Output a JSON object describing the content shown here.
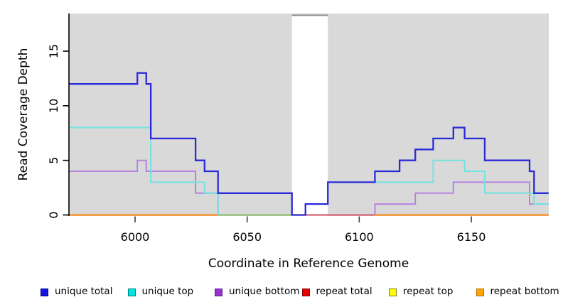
{
  "chart_data": {
    "type": "line",
    "subtype": "step-coverage",
    "title": "",
    "xlabel": "Coordinate in Reference Genome",
    "ylabel": "Read Coverage Depth",
    "x_ticks": [
      6000,
      6050,
      6100,
      6150
    ],
    "y_ticks": [
      0,
      5,
      10,
      15
    ],
    "x_range": [
      5970,
      6184.5
    ],
    "y_range": [
      0,
      18.4
    ],
    "grid": false,
    "legend_position": "bottom",
    "panel_bg": "#D9D9D9",
    "gap_region": {
      "x_start": 6070,
      "x_end": 6086,
      "fill": "#FFFFFF",
      "top_border": "#8C8C8C"
    },
    "series": [
      {
        "key": "repeat-total",
        "name": "repeat total",
        "color": "#DD2222",
        "width": 2,
        "paths": [
          {
            "x": [
              5970
            ],
            "y": [
              0
            ],
            "xend": 6184.5
          }
        ]
      },
      {
        "key": "repeat-top",
        "name": "repeat top",
        "color": "#F5F523",
        "width": 2,
        "paths": [
          {
            "x": [
              5970
            ],
            "y": [
              0
            ],
            "xend": 6184.5
          }
        ]
      },
      {
        "key": "repeat-bottom",
        "name": "repeat bottom",
        "color": "#FF8C1A",
        "width": 2.2,
        "paths": [
          {
            "x": [
              5970
            ],
            "y": [
              0
            ],
            "xend": 6184.5
          }
        ]
      },
      {
        "key": "unique-bottom",
        "name": "unique bottom",
        "color": "#B583DE",
        "width": 2,
        "paths": [
          {
            "x": [
              5970,
              6001,
              6005,
              6027,
              6037
            ],
            "y": [
              4,
              5,
              4,
              2,
              0
            ],
            "xend": null
          },
          {
            "x": [
              6107,
              6107,
              6125,
              6142,
              6176
            ],
            "y": [
              0,
              1,
              2,
              3,
              1
            ],
            "xend": 6184.5
          }
        ]
      },
      {
        "key": "unique-top",
        "name": "unique top",
        "color": "#74E2E0",
        "width": 2,
        "paths": [
          {
            "x": [
              5970,
              6007,
              6031,
              6037
            ],
            "y": [
              8,
              3,
              2,
              0
            ],
            "xend": null
          },
          {
            "x": [
              6107,
              6133,
              6147,
              6156,
              6178
            ],
            "y": [
              3,
              5,
              4,
              2,
              1
            ],
            "xend": 6184.5
          }
        ]
      },
      {
        "key": "unique-total",
        "name": "unique total",
        "color": "#2A2AD8",
        "width": 2.3,
        "paths": [
          {
            "x": [
              5970,
              6001,
              6005,
              6007,
              6027,
              6031,
              6037,
              6070,
              6076,
              6086,
              6107,
              6118,
              6125,
              6133,
              6142,
              6147,
              6156,
              6176,
              6178
            ],
            "y": [
              12,
              13,
              12,
              7,
              5,
              4,
              2,
              0,
              1,
              3,
              4,
              5,
              6,
              7,
              8,
              7,
              5,
              4,
              2
            ],
            "xend": 6184.5
          }
        ]
      }
    ],
    "zero_line_overlaps": [
      {
        "x1": 6037,
        "x2": 6070,
        "color": "#7EC882"
      },
      {
        "x1": 6076,
        "x2": 6106.5,
        "color": "#CC6080"
      }
    ]
  },
  "legend": {
    "items": [
      {
        "key": "unique-total",
        "label": "unique total",
        "fill": "#1414E6",
        "border": "#000080"
      },
      {
        "key": "unique-top",
        "label": "unique top",
        "fill": "#00E6E6",
        "border": "#007A7A"
      },
      {
        "key": "unique-bottom",
        "label": "unique bottom",
        "fill": "#9933CC",
        "border": "#5C1F8F"
      },
      {
        "key": "repeat-total",
        "label": "repeat total",
        "fill": "#E60000",
        "border": "#800000"
      },
      {
        "key": "repeat-top",
        "label": "repeat top",
        "fill": "#FFFF00",
        "border": "#808000"
      },
      {
        "key": "repeat-bottom",
        "label": "repeat bottom",
        "fill": "#FFA500",
        "border": "#B36B00"
      }
    ]
  }
}
